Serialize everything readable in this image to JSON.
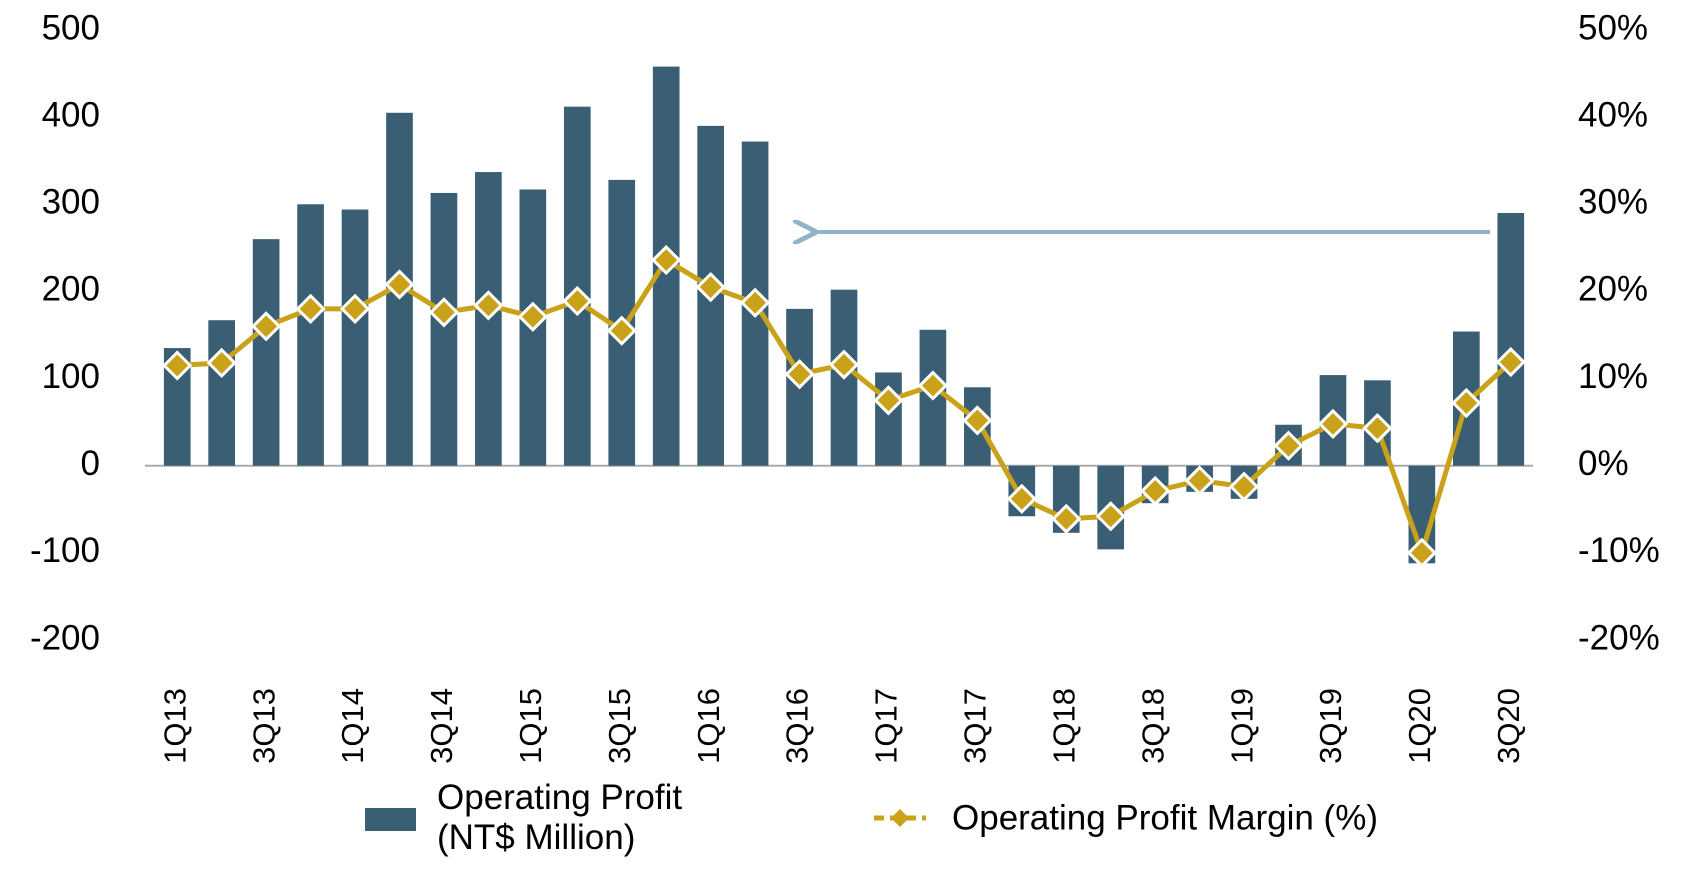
{
  "chart_data": {
    "type": "bar",
    "categories": [
      "1Q13",
      null,
      "3Q13",
      null,
      "1Q14",
      null,
      "3Q14",
      null,
      "1Q15",
      null,
      "3Q15",
      null,
      "1Q16",
      null,
      "3Q16",
      null,
      "1Q17",
      null,
      "3Q17",
      null,
      "1Q18",
      null,
      "3Q18",
      null,
      "1Q19",
      null,
      "3Q19",
      null,
      "1Q20",
      null,
      "3Q20"
    ],
    "series": [
      {
        "name": "Operating Profit (NT$ Million)",
        "type": "bar",
        "color": "#3a5f75",
        "values": [
          135,
          167,
          260,
          300,
          294,
          405,
          313,
          337,
          317,
          412,
          328,
          458,
          390,
          372,
          180,
          202,
          107,
          156,
          90,
          -58,
          -77,
          -96,
          -43,
          -30,
          -38,
          47,
          104,
          98,
          -112,
          154,
          290
        ]
      },
      {
        "name": "Operating Profit Margin (%)",
        "type": "line",
        "axis": "y2",
        "color": "#c9a21a",
        "values": [
          11.5,
          11.8,
          16,
          18,
          18,
          20.8,
          17.6,
          18.4,
          17.1,
          18.9,
          15.5,
          23.6,
          20.5,
          18.7,
          10.5,
          11.6,
          7.5,
          9.2,
          5.2,
          -3.8,
          -6.1,
          -5.8,
          -2.9,
          -1.7,
          -2.4,
          2.3,
          4.8,
          4.3,
          -10,
          7.2,
          11.9
        ]
      }
    ],
    "ylim": [
      -200,
      500
    ],
    "yticks": [
      -200,
      -100,
      0,
      100,
      200,
      300,
      400,
      500
    ],
    "y2lim": [
      -20,
      50
    ],
    "y2ticks": [
      {
        "value": -20,
        "label": "-20%"
      },
      {
        "value": -10,
        "label": "-10%"
      },
      {
        "value": 0,
        "label": "0%"
      },
      {
        "value": 10,
        "label": "10%"
      },
      {
        "value": 20,
        "label": "20%"
      },
      {
        "value": 30,
        "label": "30%"
      },
      {
        "value": 40,
        "label": "40%"
      },
      {
        "value": 50,
        "label": "50%"
      }
    ],
    "grid": false
  }
}
